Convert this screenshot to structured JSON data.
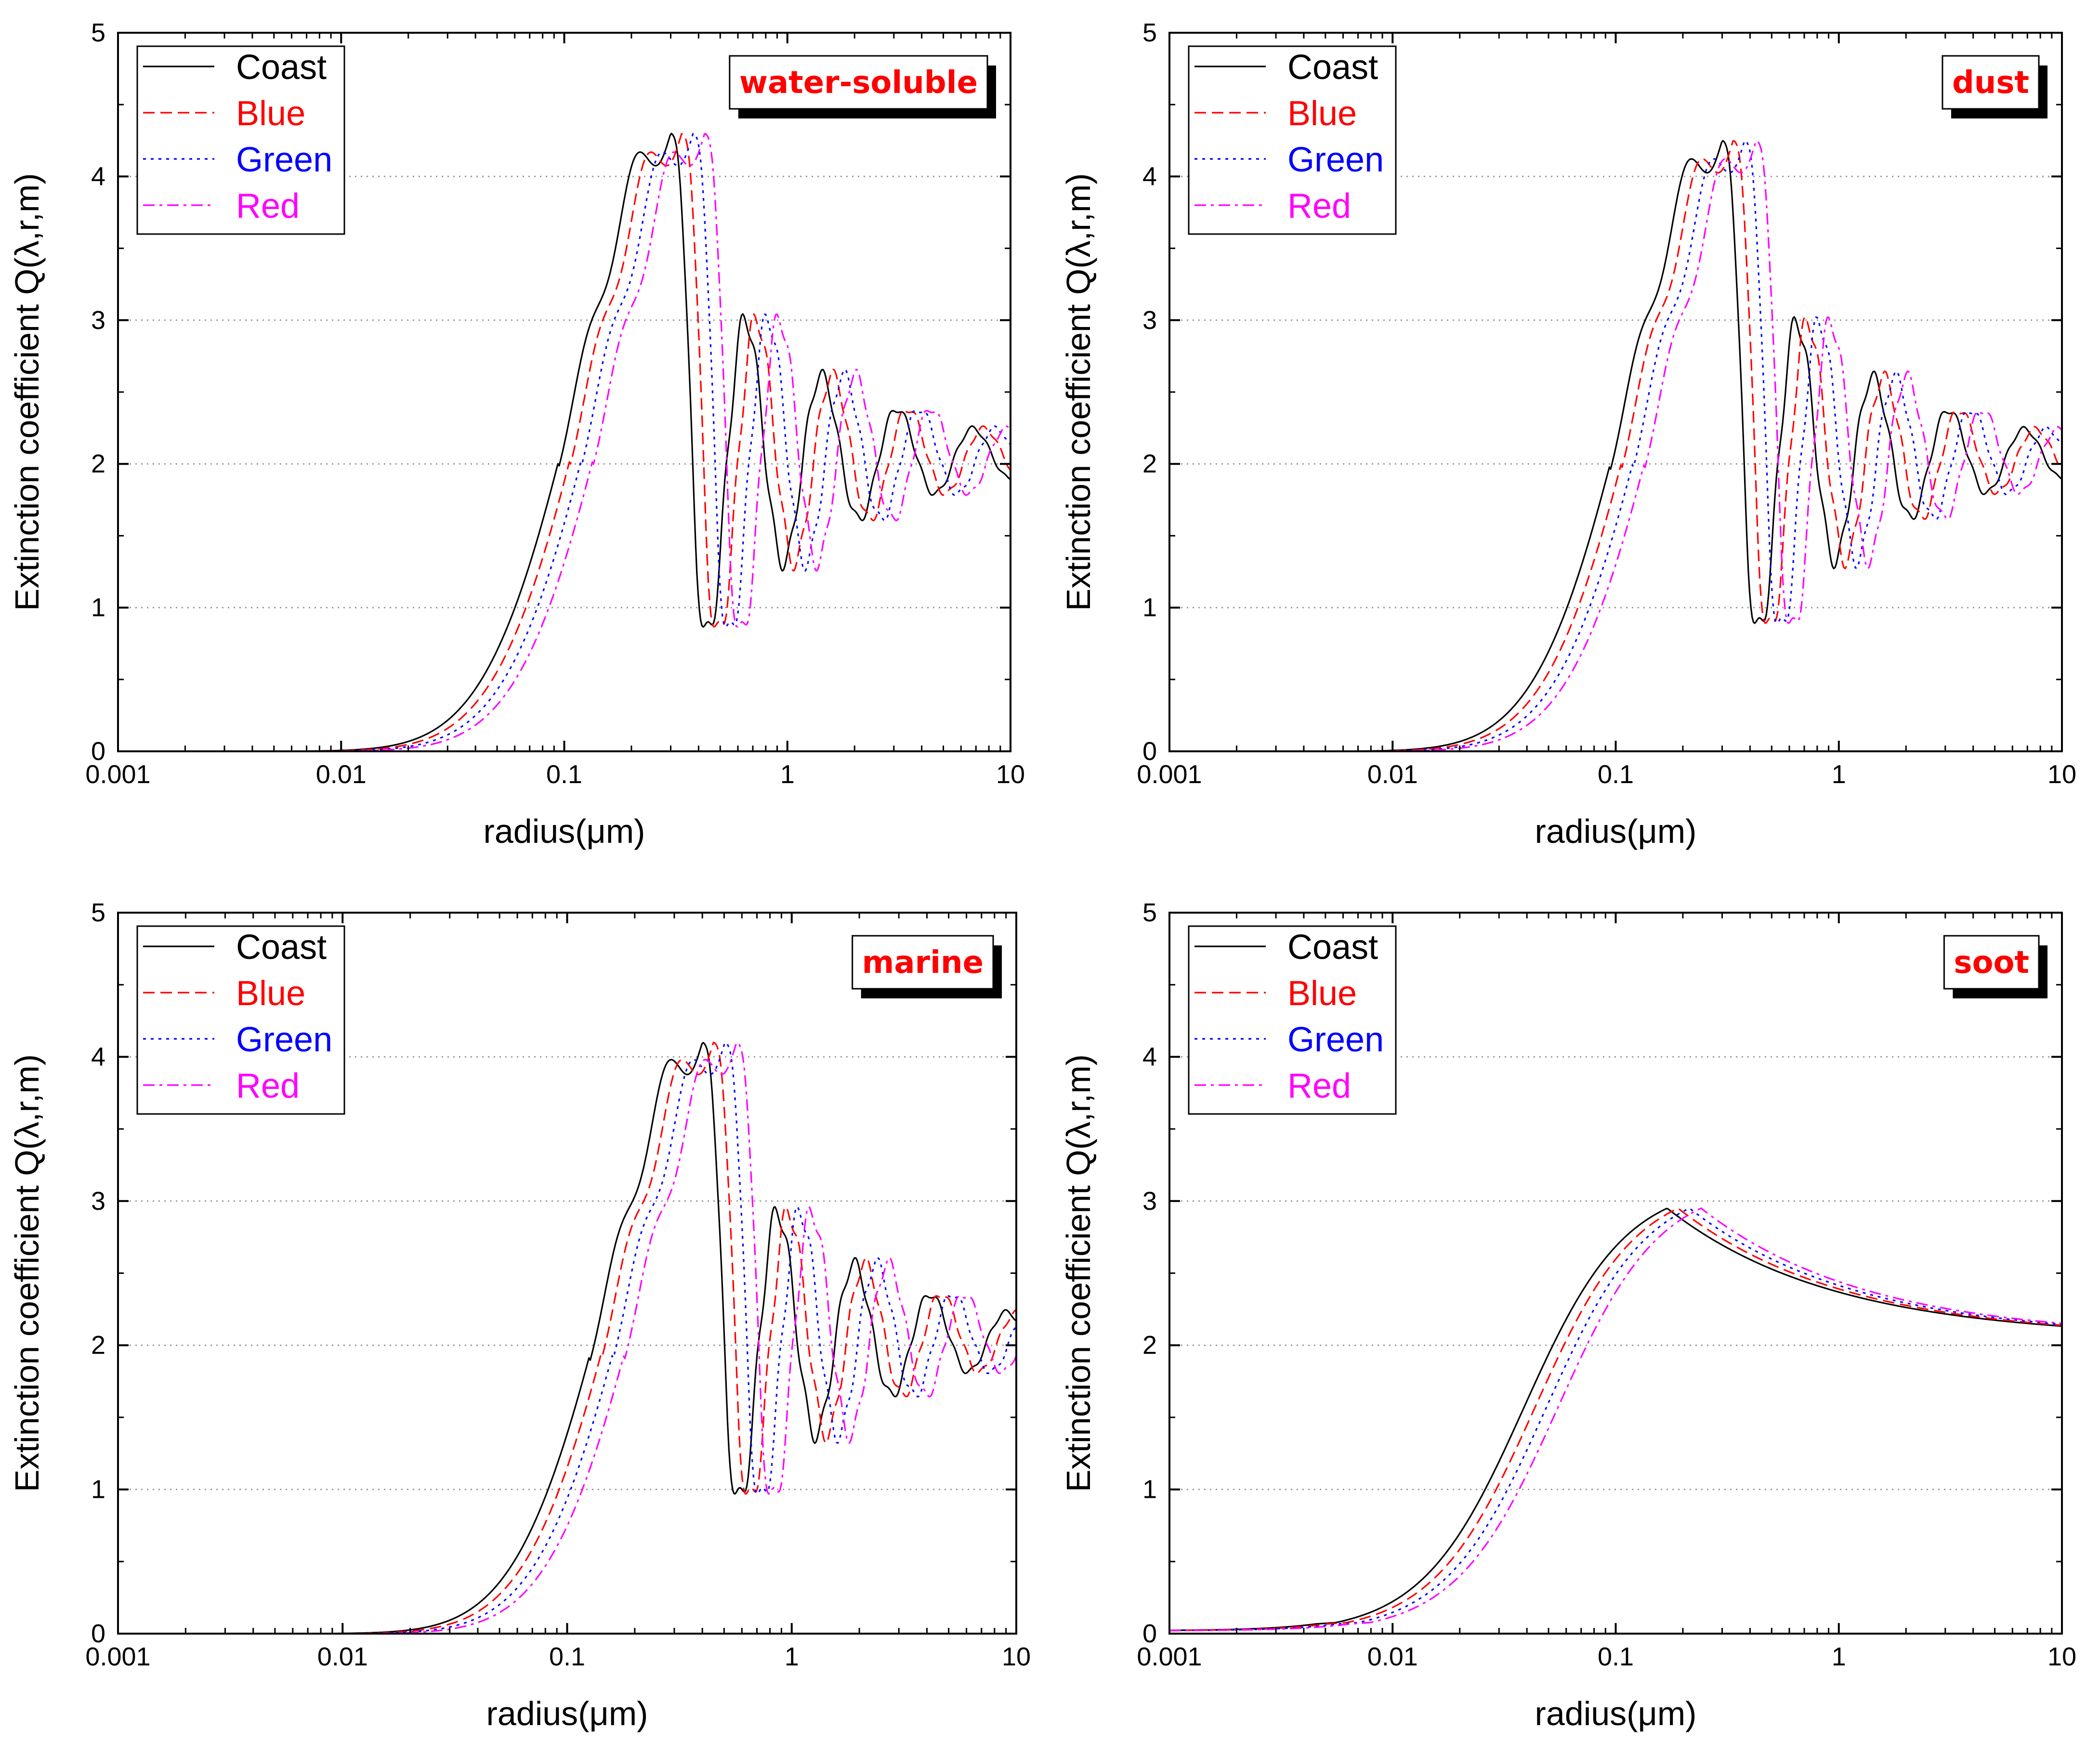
{
  "figure": {
    "panel_count": 4
  },
  "legend": {
    "series": [
      {
        "name": "Coast",
        "color": "#000000",
        "dash": "solid"
      },
      {
        "name": "Blue",
        "color": "#ff0000",
        "dash": "dashed"
      },
      {
        "name": "Green",
        "color": "#0000ff",
        "dash": "dotted"
      },
      {
        "name": "Red",
        "color": "#ff00ff",
        "dash": "dashdot"
      }
    ]
  },
  "chart_data": [
    {
      "type": "line",
      "title": "water-soluble",
      "xlabel": "radius(μm)",
      "ylabel": "Extinction coefficient Q(λ,r,m)",
      "xscale": "log",
      "xlim": [
        0.001,
        10
      ],
      "ylim": [
        0,
        5
      ],
      "xticks": [
        "0.001",
        "0.01",
        "0.1",
        "1",
        "10"
      ],
      "yticks": [
        "0",
        "1",
        "2",
        "3",
        "4",
        "5"
      ],
      "grid": "horizontal-dotted",
      "legend_position": "top-left",
      "curve": {
        "kind": "mie",
        "peak_radius": 0.3,
        "peak_value": 4.3,
        "asymptote": 2.05
      },
      "series": [
        {
          "name": "Coast",
          "shift": 1.0
        },
        {
          "name": "Blue",
          "shift": 1.12
        },
        {
          "name": "Green",
          "shift": 1.26
        },
        {
          "name": "Red",
          "shift": 1.42
        }
      ]
    },
    {
      "type": "line",
      "title": "dust",
      "xlabel": "radius(μm)",
      "ylabel": "Extinction coefficient Q(λ,r,m)",
      "xscale": "log",
      "xlim": [
        0.001,
        10
      ],
      "ylim": [
        0,
        5
      ],
      "xticks": [
        "0.001",
        "0.01",
        "0.1",
        "1",
        "10"
      ],
      "yticks": [
        "0",
        "1",
        "2",
        "3",
        "4",
        "5"
      ],
      "grid": "horizontal-dotted",
      "legend_position": "top-left",
      "curve": {
        "kind": "mie",
        "peak_radius": 0.3,
        "peak_value": 4.25,
        "asymptote": 2.05
      },
      "series": [
        {
          "name": "Coast",
          "shift": 1.0
        },
        {
          "name": "Blue",
          "shift": 1.12
        },
        {
          "name": "Green",
          "shift": 1.26
        },
        {
          "name": "Red",
          "shift": 1.42
        }
      ]
    },
    {
      "type": "line",
      "title": "marine",
      "xlabel": "radius(μm)",
      "ylabel": "Extinction coefficient Q(λ,r,m)",
      "xscale": "log",
      "xlim": [
        0.001,
        10
      ],
      "ylim": [
        0,
        5
      ],
      "xticks": [
        "0.001",
        "0.01",
        "0.1",
        "1",
        "10"
      ],
      "yticks": [
        "0",
        "1",
        "2",
        "3",
        "4",
        "5"
      ],
      "grid": "horizontal-dotted",
      "legend_position": "top-left",
      "curve": {
        "kind": "mie",
        "peak_radius": 0.4,
        "peak_value": 4.1,
        "asymptote": 2.05
      },
      "series": [
        {
          "name": "Coast",
          "shift": 1.0
        },
        {
          "name": "Blue",
          "shift": 1.12
        },
        {
          "name": "Green",
          "shift": 1.26
        },
        {
          "name": "Red",
          "shift": 1.42
        }
      ]
    },
    {
      "type": "line",
      "title": "soot",
      "xlabel": "radius(μm)",
      "ylabel": "Extinction coefficient Q(λ,r,m)",
      "xscale": "log",
      "xlim": [
        0.001,
        10
      ],
      "ylim": [
        0,
        5
      ],
      "xticks": [
        "0.001",
        "0.01",
        "0.1",
        "1",
        "10"
      ],
      "yticks": [
        "0",
        "1",
        "2",
        "3",
        "4",
        "5"
      ],
      "grid": "horizontal-dotted",
      "legend_position": "top-left",
      "curve": {
        "kind": "absorbing",
        "peak_radius": 0.17,
        "peak_value": 2.95,
        "asymptote": 2.05
      },
      "series": [
        {
          "name": "Coast",
          "shift": 1.0
        },
        {
          "name": "Blue",
          "shift": 1.12
        },
        {
          "name": "Green",
          "shift": 1.26
        },
        {
          "name": "Red",
          "shift": 1.42
        }
      ]
    }
  ]
}
